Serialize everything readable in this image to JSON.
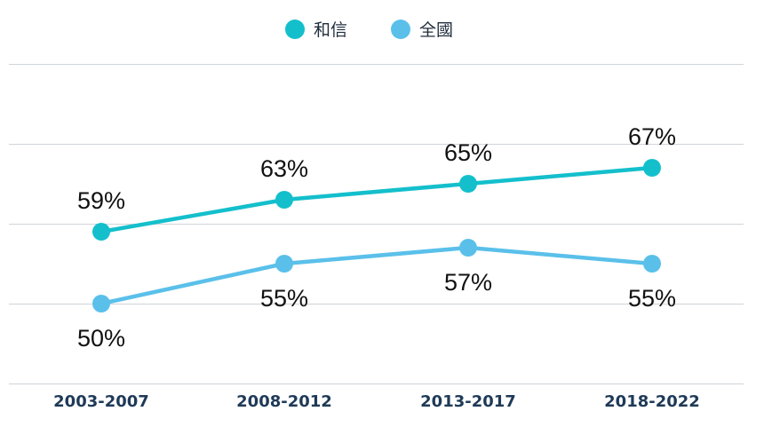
{
  "chart_data": {
    "type": "line",
    "categories": [
      "2003-2007",
      "2008-2012",
      "2013-2017",
      "2018-2022"
    ],
    "series": [
      {
        "name": "和信",
        "values": [
          59,
          63,
          65,
          67
        ],
        "labels": [
          "59%",
          "63%",
          "65%",
          "67%"
        ],
        "color": "#14bfcc",
        "label_position": "above"
      },
      {
        "name": "全國",
        "values": [
          50,
          55,
          57,
          55
        ],
        "labels": [
          "50%",
          "55%",
          "57%",
          "55%"
        ],
        "color": "#5ac0ea",
        "label_position": "below"
      }
    ],
    "ylim": [
      40,
      80
    ],
    "grid": true,
    "legend": "top-center",
    "xlabel": "",
    "ylabel": ""
  }
}
